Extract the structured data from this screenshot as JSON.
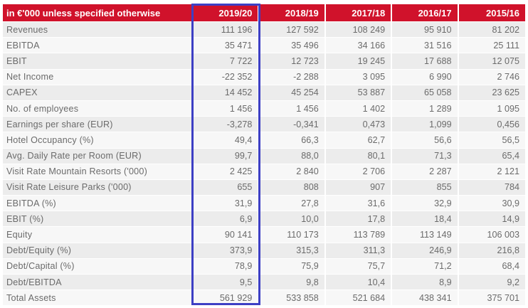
{
  "header": {
    "label": "in €'000 unless specified otherwise",
    "years": [
      "2019/20",
      "2018/19",
      "2017/18",
      "2016/17",
      "2015/16"
    ]
  },
  "rows": [
    {
      "label": "Revenues",
      "values": [
        "111 196",
        "127 592",
        "108 249",
        "95 910",
        "81 202"
      ]
    },
    {
      "label": "EBITDA",
      "values": [
        "35 471",
        "35 496",
        "34 166",
        "31 516",
        "25 111"
      ]
    },
    {
      "label": "EBIT",
      "values": [
        "7 722",
        "12 723",
        "19 245",
        "17 688",
        "12 075"
      ]
    },
    {
      "label": "Net Income",
      "values": [
        "-22 352",
        "-2 288",
        "3 095",
        "6 990",
        "2 746"
      ]
    },
    {
      "label": "CAPEX",
      "values": [
        "14 452",
        "45 254",
        "53 887",
        "65 058",
        "23 625"
      ]
    },
    {
      "label": "No. of employees",
      "values": [
        "1 456",
        "1 456",
        "1 402",
        "1 289",
        "1 095"
      ]
    },
    {
      "label": "Earnings per share (EUR)",
      "values": [
        "-3,278",
        "-0,341",
        "0,473",
        "1,099",
        "0,456"
      ]
    },
    {
      "label": "Hotel Occupancy (%)",
      "values": [
        "49,4",
        "66,3",
        "62,7",
        "56,6",
        "56,5"
      ]
    },
    {
      "label": "Avg. Daily Rate per Room (EUR)",
      "values": [
        "99,7",
        "88,0",
        "80,1",
        "71,3",
        "65,4"
      ]
    },
    {
      "label": "Visit Rate Mountain Resorts ('000)",
      "values": [
        "2 425",
        "2 840",
        "2 706",
        "2 287",
        "2 121"
      ]
    },
    {
      "label": "Visit Rate Leisure Parks ('000)",
      "values": [
        "655",
        "808",
        "907",
        "855",
        "784"
      ]
    },
    {
      "label": "EBITDA (%)",
      "values": [
        "31,9",
        "27,8",
        "31,6",
        "32,9",
        "30,9"
      ]
    },
    {
      "label": "EBIT (%)",
      "values": [
        "6,9",
        "10,0",
        "17,8",
        "18,4",
        "14,9"
      ]
    },
    {
      "label": "Equity",
      "values": [
        "90 141",
        "110 173",
        "113 789",
        "113 149",
        "106 003"
      ]
    },
    {
      "label": "Debt/Equity (%)",
      "values": [
        "373,9",
        "315,3",
        "311,3",
        "246,9",
        "216,8"
      ]
    },
    {
      "label": "Debt/Capital (%)",
      "values": [
        "78,9",
        "75,9",
        "75,7",
        "71,2",
        "68,4"
      ]
    },
    {
      "label": "Debt/EBITDA",
      "values": [
        "9,5",
        "9,8",
        "10,4",
        "8,9",
        "9,2"
      ]
    },
    {
      "label": "Total Assets",
      "values": [
        "561 929",
        "533 858",
        "521 684",
        "438 341",
        "375 701"
      ]
    }
  ],
  "colors": {
    "header_bg": "#d0122b",
    "highlight_border": "#3d3fc4"
  }
}
